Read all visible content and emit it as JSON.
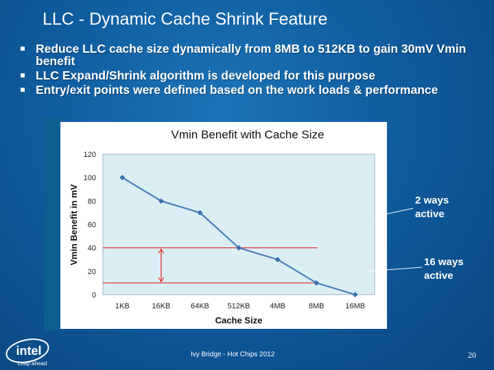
{
  "slide": {
    "title": "LLC - Dynamic Cache Shrink Feature",
    "bullets": [
      "Reduce LLC cache size dynamically from 8MB to 512KB to gain 30mV Vmin benefit",
      "LLC Expand/Shrink algorithm is developed for this purpose",
      "Entry/exit points were defined based on the work loads & performance"
    ],
    "callouts": {
      "two_ways": [
        "2 ways",
        "active"
      ],
      "sixteen_ways": [
        "16 ways",
        "active"
      ]
    },
    "footer": "Ivy Bridge  - Hot Chips 2012",
    "page_number": "20",
    "logo": {
      "wordmark": "intel",
      "tagline": "Leap ahead"
    }
  },
  "chart_data": {
    "type": "line",
    "title": "Vmin Benefit with Cache Size",
    "xlabel": "Cache Size",
    "ylabel": "Vmin Benefit in mV",
    "categories": [
      "1KB",
      "16KB",
      "64KB",
      "512KB",
      "4MB",
      "8MB",
      "16MB"
    ],
    "series": [
      {
        "values": [
          100,
          80,
          70,
          40,
          30,
          10,
          0
        ]
      }
    ],
    "ylim": [
      0,
      120
    ],
    "yticks": [
      0,
      20,
      40,
      60,
      80,
      100,
      120
    ],
    "reference_lines": [
      40,
      10
    ],
    "grid": false,
    "colors": {
      "line": "#4a7ebb",
      "marker": "#3d6fb0",
      "reference": "#e02020",
      "plot_bg": "#dbeef4"
    }
  }
}
